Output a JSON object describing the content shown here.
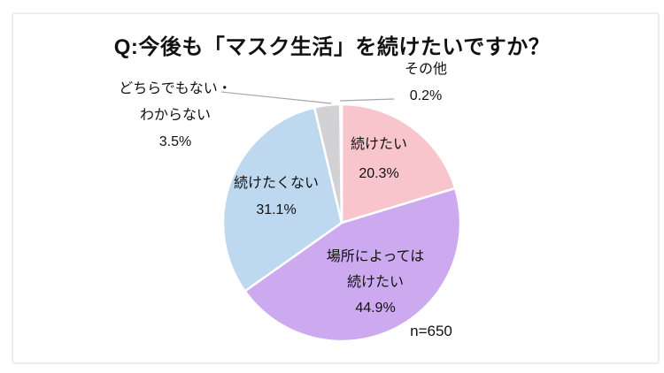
{
  "page": {
    "background_color": "#FFFFFF",
    "frame_border_color": "#ECECEC",
    "text_color": "#111111"
  },
  "chart_data": {
    "type": "pie",
    "title": "Q:今後も「マスク生活」を続けたいですか？",
    "sample_size_label": "n=650",
    "direction": "clockwise",
    "start_angle_deg": 0,
    "legend_position": "none",
    "slice_border_color": "#FFFFFF",
    "leader_line_color": "#A6A6A6",
    "slices": [
      {
        "label": "続けたい",
        "label_lines": [
          "続けたい"
        ],
        "value": 20.3,
        "display": "20.3%",
        "color": "#F8C5CC"
      },
      {
        "label": "場所によっては続けたい",
        "label_lines": [
          "場所によっては",
          "続けたい"
        ],
        "value": 44.9,
        "display": "44.9%",
        "color": "#CDA9EF"
      },
      {
        "label": "続けたくない",
        "label_lines": [
          "続けたくない"
        ],
        "value": 31.1,
        "display": "31.1%",
        "color": "#BED8EF"
      },
      {
        "label": "どちらでもない・わからない",
        "label_lines": [
          "どちらでもない・",
          "わからない"
        ],
        "value": 3.5,
        "display": "3.5%",
        "color": "#D2D2D4"
      },
      {
        "label": "その他",
        "label_lines": [
          "その他"
        ],
        "value": 0.2,
        "display": "0.2%",
        "color": "#FFFFFF"
      }
    ]
  }
}
